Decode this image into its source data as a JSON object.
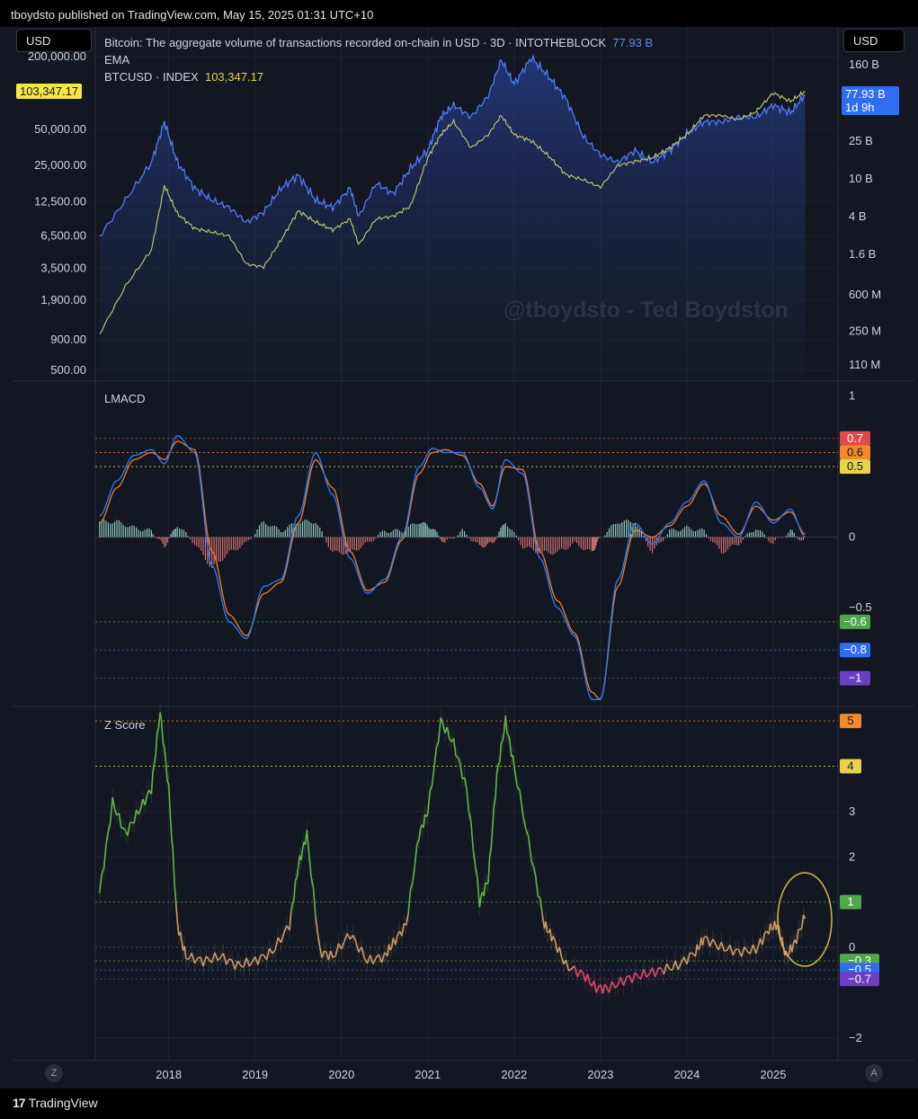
{
  "header": {
    "published": "tboydsto published on TradingView.com, May 15, 2025 01:31 UTC+10"
  },
  "footer": {
    "brand": "TradingView",
    "left_axis_button": "Z",
    "right_axis_button": "A"
  },
  "watermark": "@tboydsto - Ted Boydston",
  "currency_left": "USD",
  "currency_right": "USD",
  "legend": {
    "line1_text": "Bitcoin: The aggregate volume of transactions recorded on-chain in USD · 3D · INTOTHEBLOCK",
    "line1_value": "77.93 B",
    "line2_text": "EMA",
    "line3_text": "BTCUSD · INDEX",
    "line3_value": "103,347.17"
  },
  "price_tags": {
    "left_price": "103,347.17",
    "right_value": "77.93 B",
    "right_countdown": "1d 9h"
  },
  "colors": {
    "background": "#131722",
    "volume_line": "#4f7cf5",
    "price_line": "#c8c87a",
    "macd_line": "#2f7bf5",
    "signal_line": "#f07c2a",
    "hist_pos": "#a5e6d6",
    "hist_neg": "#f08080",
    "z_high": "#63b34a",
    "z_mid": "#c69a6a",
    "z_low": "#e0476a",
    "circle": "#d4b84a"
  },
  "chart_data": [
    {
      "type": "line",
      "pane": "price",
      "x_axis": [
        "2018",
        "2019",
        "2020",
        "2021",
        "2022",
        "2023",
        "2024",
        "2025"
      ],
      "left_axis": {
        "scale": "log",
        "ticks": [
          "200,000.00",
          "50,000.00",
          "25,000.00",
          "12,500.00",
          "6,500.00",
          "3,500.00",
          "1,900.00",
          "900.00",
          "500.00"
        ]
      },
      "right_axis": {
        "scale": "log",
        "ticks": [
          "160 B",
          "25 B",
          "10 B",
          "4 B",
          "1.6 B",
          "600 M",
          "250 M",
          "110 M"
        ]
      },
      "series": [
        {
          "name": "Bitcoin: The aggregate volume of transactions recorded on-chain in USD",
          "axis": "right",
          "x": [
            2017.2,
            2017.5,
            2017.8,
            2017.95,
            2018.1,
            2018.3,
            2018.5,
            2018.7,
            2018.9,
            2019.1,
            2019.3,
            2019.5,
            2019.7,
            2019.9,
            2020.1,
            2020.2,
            2020.4,
            2020.6,
            2020.8,
            2021.0,
            2021.15,
            2021.3,
            2021.5,
            2021.7,
            2021.85,
            2022.0,
            2022.2,
            2022.4,
            2022.6,
            2022.8,
            2023.0,
            2023.2,
            2023.4,
            2023.6,
            2023.8,
            2024.0,
            2024.2,
            2024.4,
            2024.6,
            2024.8,
            2025.0,
            2025.2,
            2025.37
          ],
          "y": [
            2.5,
            6,
            15,
            40,
            15,
            8,
            6,
            5,
            3.5,
            4.5,
            8,
            11,
            6,
            5,
            8,
            4,
            9,
            7,
            13,
            20,
            45,
            60,
            45,
            75,
            180,
            100,
            190,
            120,
            70,
            28,
            18,
            15,
            20,
            15,
            20,
            30,
            40,
            40,
            45,
            45,
            60,
            50,
            77.93
          ]
        },
        {
          "name": "BTCUSD · INDEX",
          "axis": "left",
          "x": [
            2017.2,
            2017.5,
            2017.8,
            2017.95,
            2018.1,
            2018.3,
            2018.5,
            2018.7,
            2018.9,
            2019.1,
            2019.3,
            2019.5,
            2019.7,
            2019.9,
            2020.1,
            2020.2,
            2020.4,
            2020.6,
            2020.8,
            2021.0,
            2021.15,
            2021.3,
            2021.5,
            2021.7,
            2021.85,
            2022.0,
            2022.2,
            2022.4,
            2022.6,
            2022.8,
            2023.0,
            2023.2,
            2023.4,
            2023.6,
            2023.8,
            2024.0,
            2024.2,
            2024.4,
            2024.6,
            2024.8,
            2025.0,
            2025.2,
            2025.37
          ],
          "y": [
            1000,
            2500,
            5000,
            17000,
            10000,
            7500,
            7000,
            6500,
            3800,
            3600,
            6000,
            10500,
            8500,
            7300,
            9000,
            5500,
            9000,
            9500,
            11500,
            29000,
            45000,
            58000,
            35000,
            45000,
            65000,
            45000,
            40000,
            30000,
            21000,
            19000,
            16500,
            25000,
            27000,
            29000,
            35000,
            45000,
            65000,
            65000,
            60000,
            70000,
            100000,
            85000,
            103347.17
          ]
        }
      ]
    },
    {
      "type": "line",
      "pane": "LMACD",
      "title": "LMACD",
      "y_ticks": [
        "1",
        "0",
        "−0.5"
      ],
      "level_tags": [
        "0.7",
        "0.6",
        "0.5",
        "−0.6",
        "−0.8",
        "−1"
      ],
      "levels": [
        0.7,
        0.6,
        0.5,
        -0.6,
        -0.8,
        -1
      ],
      "ylim": [
        -1.2,
        1.1
      ],
      "x": [
        2017.2,
        2017.4,
        2017.6,
        2017.8,
        2017.95,
        2018.1,
        2018.3,
        2018.5,
        2018.7,
        2018.9,
        2019.1,
        2019.3,
        2019.5,
        2019.7,
        2019.9,
        2020.1,
        2020.3,
        2020.5,
        2020.7,
        2020.9,
        2021.05,
        2021.2,
        2021.4,
        2021.6,
        2021.75,
        2021.9,
        2022.1,
        2022.3,
        2022.5,
        2022.7,
        2022.9,
        2023.0,
        2023.2,
        2023.4,
        2023.6,
        2023.8,
        2024.0,
        2024.2,
        2024.4,
        2024.6,
        2024.8,
        2025.0,
        2025.2,
        2025.37
      ],
      "series": [
        {
          "name": "LMACD",
          "values": [
            0.15,
            0.4,
            0.58,
            0.62,
            0.52,
            0.72,
            0.6,
            -0.2,
            -0.6,
            -0.72,
            -0.35,
            -0.3,
            0.15,
            0.6,
            0.3,
            -0.15,
            -0.4,
            -0.3,
            0.0,
            0.5,
            0.63,
            0.6,
            0.6,
            0.35,
            0.2,
            0.55,
            0.45,
            -0.15,
            -0.5,
            -0.7,
            -1.15,
            -1.15,
            -0.3,
            0.1,
            -0.05,
            0.1,
            0.25,
            0.4,
            0.1,
            0.0,
            0.25,
            0.1,
            0.2,
            0.0
          ]
        },
        {
          "name": "Signal",
          "values": [
            0.1,
            0.35,
            0.55,
            0.6,
            0.55,
            0.68,
            0.62,
            -0.1,
            -0.55,
            -0.7,
            -0.4,
            -0.32,
            0.1,
            0.55,
            0.35,
            -0.1,
            -0.38,
            -0.32,
            -0.02,
            0.45,
            0.6,
            0.62,
            0.58,
            0.38,
            0.22,
            0.5,
            0.48,
            -0.1,
            -0.45,
            -0.68,
            -1.1,
            -1.15,
            -0.35,
            0.05,
            0.0,
            0.08,
            0.22,
            0.38,
            0.15,
            0.02,
            0.22,
            0.12,
            0.18,
            0.02
          ]
        }
      ]
    },
    {
      "type": "line",
      "pane": "Z Score",
      "title": "Z Score",
      "y_ticks": [
        "3",
        "2",
        "0",
        "−2"
      ],
      "level_tags": [
        "5",
        "4",
        "1",
        "−0.3",
        "−0.5",
        "−0.7"
      ],
      "levels": [
        5,
        4,
        1,
        -0.3,
        -0.5,
        -0.7
      ],
      "ylim": [
        -2.5,
        5.3
      ],
      "x": [
        2017.2,
        2017.35,
        2017.5,
        2017.65,
        2017.8,
        2017.9,
        2018.0,
        2018.1,
        2018.2,
        2018.4,
        2018.6,
        2018.8,
        2019.0,
        2019.2,
        2019.4,
        2019.5,
        2019.6,
        2019.75,
        2019.9,
        2020.1,
        2020.3,
        2020.5,
        2020.6,
        2020.75,
        2020.9,
        2021.0,
        2021.15,
        2021.3,
        2021.45,
        2021.6,
        2021.7,
        2021.8,
        2021.9,
        2022.0,
        2022.2,
        2022.35,
        2022.45,
        2022.6,
        2022.8,
        2022.95,
        2023.1,
        2023.3,
        2023.5,
        2023.7,
        2023.9,
        2024.1,
        2024.2,
        2024.4,
        2024.6,
        2024.8,
        2024.95,
        2025.05,
        2025.15,
        2025.25,
        2025.37
      ],
      "series": [
        {
          "name": "Z Score",
          "values": [
            1.2,
            3.2,
            2.5,
            3.0,
            3.5,
            5.2,
            3.5,
            0.5,
            -0.2,
            -0.3,
            -0.2,
            -0.4,
            -0.3,
            -0.1,
            0.5,
            1.8,
            2.5,
            -0.1,
            -0.2,
            0.3,
            -0.3,
            -0.2,
            0.1,
            0.5,
            2.5,
            3.0,
            5.0,
            4.5,
            3.5,
            1.0,
            1.5,
            3.8,
            5.0,
            4.0,
            2.0,
            0.5,
            0.2,
            -0.4,
            -0.6,
            -0.9,
            -0.9,
            -0.7,
            -0.6,
            -0.5,
            -0.4,
            -0.1,
            0.2,
            0.0,
            -0.1,
            -0.05,
            0.4,
            0.5,
            -0.2,
            0.1,
            0.7
          ]
        }
      ]
    }
  ]
}
